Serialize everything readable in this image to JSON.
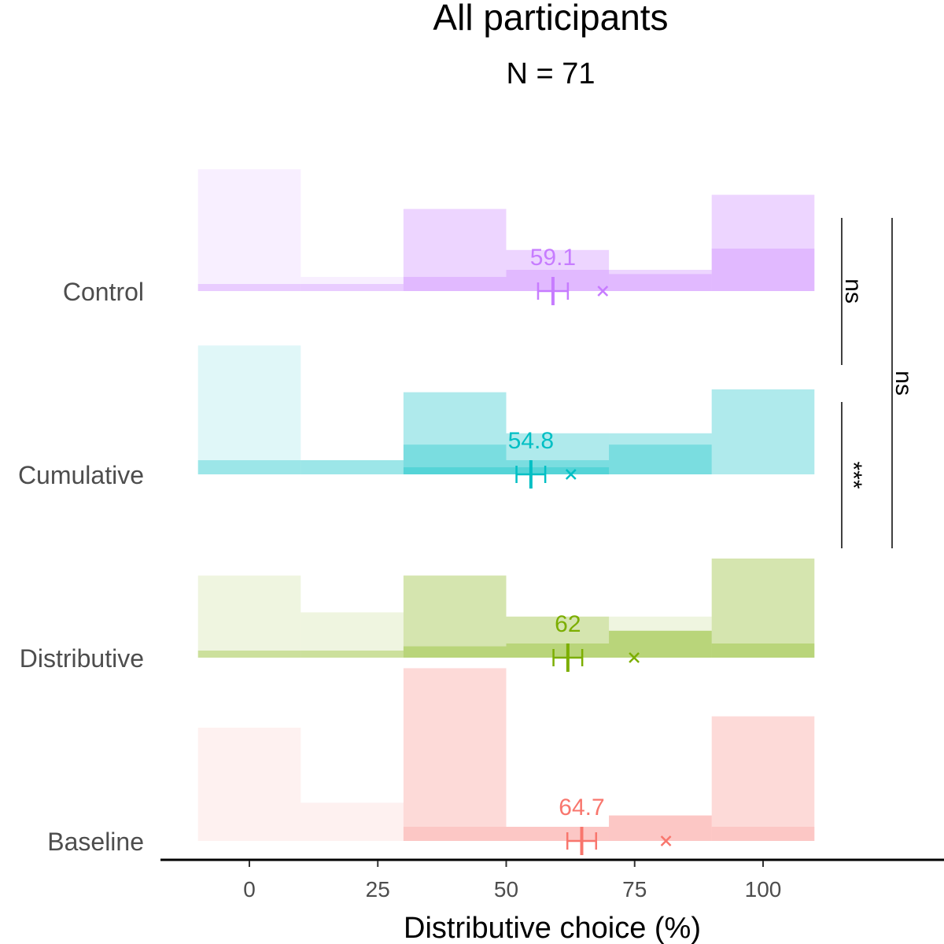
{
  "chart_data": {
    "type": "bar",
    "title": "All participants",
    "subtitle": "N = 71",
    "xlabel": "Distributive choice (%)",
    "xticks": [
      0,
      25,
      50,
      75,
      100
    ],
    "xlim": [
      -17,
      135
    ],
    "bin_edges": [
      -10,
      10,
      30,
      50,
      70,
      90,
      110
    ],
    "groups": [
      {
        "name": "Control",
        "color": "#c77cff",
        "mean": 59.1,
        "mean_label": "59.1",
        "ci": [
          56.2,
          62.0
        ],
        "cross": 68.8,
        "layers": [
          {
            "opacity": 0.12,
            "values": [
              0.86,
              0.1,
              0.58,
              0.29,
              0.15,
              0.68
            ]
          },
          {
            "opacity": 0.22,
            "values": [
              0.0,
              0.0,
              0.58,
              0.29,
              0.15,
              0.68
            ]
          },
          {
            "opacity": 0.3,
            "values": [
              0.05,
              0.05,
              0.1,
              0.15,
              0.12,
              0.3
            ]
          }
        ]
      },
      {
        "name": "Cumulative",
        "color": "#00bfc4",
        "mean": 54.8,
        "mean_label": "54.8",
        "ci": [
          52.0,
          57.6
        ],
        "cross": 62.6,
        "layers": [
          {
            "opacity": 0.12,
            "values": [
              0.91,
              0.1,
              0.58,
              0.29,
              0.29,
              0.6
            ]
          },
          {
            "opacity": 0.22,
            "values": [
              0.0,
              0.0,
              0.58,
              0.29,
              0.29,
              0.6
            ]
          },
          {
            "opacity": 0.3,
            "values": [
              0.1,
              0.1,
              0.21,
              0.1,
              0.21,
              0.0
            ]
          },
          {
            "opacity": 0.3,
            "values": [
              0.0,
              0.0,
              0.05,
              0.05,
              0.0,
              0.0
            ]
          }
        ]
      },
      {
        "name": "Distributive",
        "color": "#7cae00",
        "mean": 62.0,
        "mean_label": "62",
        "ci": [
          59.2,
          64.8
        ],
        "cross": 74.9,
        "layers": [
          {
            "opacity": 0.12,
            "values": [
              0.58,
              0.32,
              0.58,
              0.29,
              0.29,
              0.7
            ]
          },
          {
            "opacity": 0.22,
            "values": [
              0.0,
              0.0,
              0.58,
              0.29,
              0.19,
              0.7
            ]
          },
          {
            "opacity": 0.3,
            "values": [
              0.05,
              0.05,
              0.08,
              0.1,
              0.19,
              0.1
            ]
          }
        ]
      },
      {
        "name": "Baseline",
        "color": "#f8766d",
        "mean": 64.7,
        "mean_label": "64.7",
        "ci": [
          61.9,
          67.5
        ],
        "cross": 81.1,
        "layers": [
          {
            "opacity": 0.1,
            "values": [
              0.8,
              0.27,
              1.22,
              0.1,
              0.18,
              0.88
            ]
          },
          {
            "opacity": 0.18,
            "values": [
              0.0,
              0.0,
              1.22,
              0.1,
              0.18,
              0.88
            ]
          },
          {
            "opacity": 0.18,
            "values": [
              0.0,
              0.0,
              0.1,
              0.1,
              0.18,
              0.1
            ]
          }
        ]
      }
    ],
    "significance": [
      {
        "label": "ns",
        "between": [
          "Control",
          "Cumulative"
        ]
      },
      {
        "label": "***",
        "between": [
          "Cumulative",
          "Distributive"
        ]
      },
      {
        "label": "ns",
        "between": [
          "Control",
          "Distributive"
        ]
      }
    ]
  }
}
